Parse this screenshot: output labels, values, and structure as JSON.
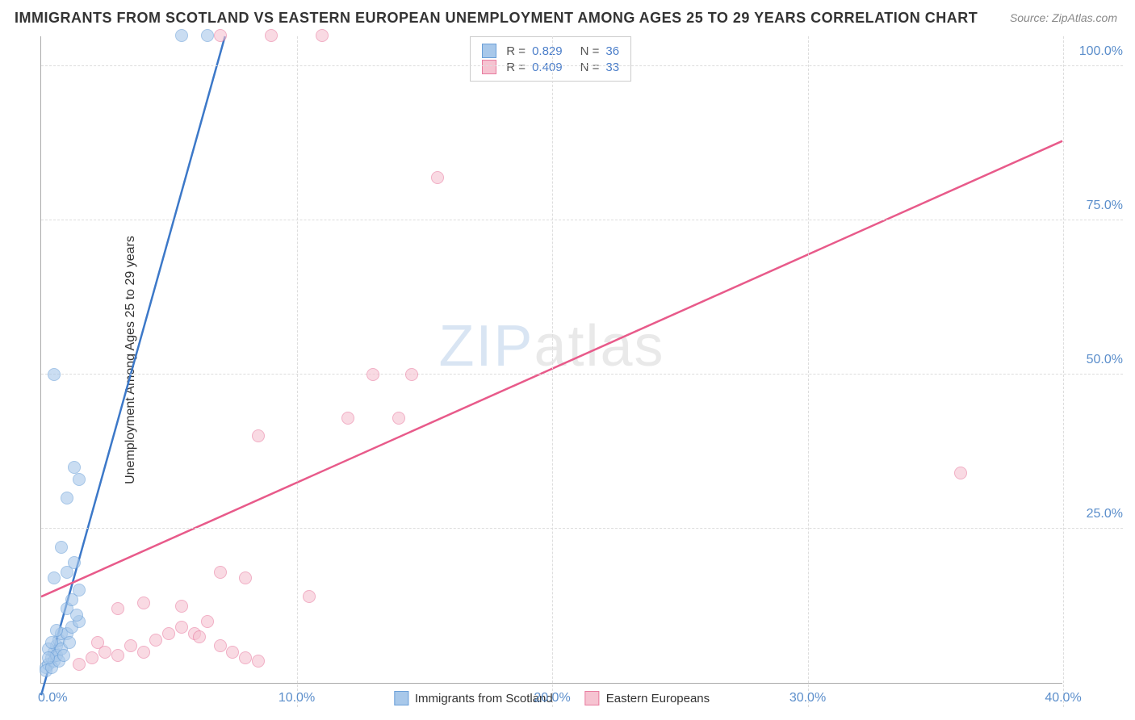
{
  "title": "IMMIGRANTS FROM SCOTLAND VS EASTERN EUROPEAN UNEMPLOYMENT AMONG AGES 25 TO 29 YEARS CORRELATION CHART",
  "source": "Source: ZipAtlas.com",
  "y_axis_label": "Unemployment Among Ages 25 to 29 years",
  "watermark": {
    "part1": "ZIP",
    "part2": "atlas"
  },
  "chart": {
    "type": "scatter-with-trend",
    "background_color": "#ffffff",
    "grid_color": "#dddddd",
    "axis_color": "#aaaaaa",
    "tick_label_color": "#5b8ecb",
    "xlim": [
      0,
      40
    ],
    "ylim": [
      0,
      105
    ],
    "xticks": [
      10,
      20,
      30,
      40
    ],
    "xtick_labels": [
      "10.0%",
      "20.0%",
      "30.0%",
      "40.0%"
    ],
    "yticks": [
      25,
      50,
      75,
      100
    ],
    "ytick_labels": [
      "25.0%",
      "50.0%",
      "75.0%",
      "100.0%"
    ],
    "origin_label": "0.0%",
    "marker_radius": 8,
    "marker_border_width": 1.2,
    "trend_line_width": 2.5,
    "series": [
      {
        "name": "Immigrants from Scotland",
        "fill_color": "#a8c8ea",
        "border_color": "#6a9fd8",
        "fill_opacity": 0.6,
        "R": "0.829",
        "N": "36",
        "trend": {
          "x1": 0,
          "y1": -2,
          "x2": 7.2,
          "y2": 105,
          "color": "#3c78c8"
        },
        "points": [
          [
            0.2,
            2.5
          ],
          [
            0.3,
            3.0
          ],
          [
            0.4,
            4.0
          ],
          [
            0.5,
            5.0
          ],
          [
            0.6,
            6.0
          ],
          [
            0.7,
            7.0
          ],
          [
            0.8,
            8.0
          ],
          [
            0.3,
            5.5
          ],
          [
            0.5,
            3.5
          ],
          [
            0.6,
            4.5
          ],
          [
            0.4,
            6.5
          ],
          [
            0.8,
            5.5
          ],
          [
            1.0,
            8.0
          ],
          [
            1.2,
            9.0
          ],
          [
            1.5,
            10.0
          ],
          [
            1.0,
            12.0
          ],
          [
            1.2,
            13.5
          ],
          [
            1.5,
            15.0
          ],
          [
            0.5,
            17.0
          ],
          [
            1.0,
            18.0
          ],
          [
            1.3,
            19.5
          ],
          [
            0.8,
            22.0
          ],
          [
            1.0,
            30.0
          ],
          [
            1.5,
            33.0
          ],
          [
            1.3,
            35.0
          ],
          [
            0.5,
            50.0
          ],
          [
            5.5,
            105.0
          ],
          [
            6.5,
            105.0
          ],
          [
            0.2,
            2.0
          ],
          [
            0.4,
            2.5
          ],
          [
            0.7,
            3.5
          ],
          [
            0.9,
            4.5
          ],
          [
            1.1,
            6.5
          ],
          [
            0.6,
            8.5
          ],
          [
            0.3,
            4.0
          ],
          [
            1.4,
            11.0
          ]
        ]
      },
      {
        "name": "Eastern Europeans",
        "fill_color": "#f6c3d1",
        "border_color": "#e87b9f",
        "fill_opacity": 0.6,
        "R": "0.409",
        "N": "33",
        "trend": {
          "x1": 0,
          "y1": 14,
          "x2": 40,
          "y2": 88,
          "color": "#e85a8a"
        },
        "points": [
          [
            1.5,
            3.0
          ],
          [
            2.0,
            4.0
          ],
          [
            2.5,
            5.0
          ],
          [
            3.0,
            4.5
          ],
          [
            3.5,
            6.0
          ],
          [
            4.0,
            5.0
          ],
          [
            4.5,
            7.0
          ],
          [
            5.0,
            8.0
          ],
          [
            5.5,
            9.0
          ],
          [
            6.0,
            8.0
          ],
          [
            6.5,
            10.0
          ],
          [
            7.0,
            6.0
          ],
          [
            7.5,
            5.0
          ],
          [
            8.0,
            4.0
          ],
          [
            8.5,
            3.5
          ],
          [
            3.0,
            12.0
          ],
          [
            4.0,
            13.0
          ],
          [
            5.5,
            12.5
          ],
          [
            8.0,
            17.0
          ],
          [
            7.0,
            18.0
          ],
          [
            8.5,
            40.0
          ],
          [
            10.5,
            14.0
          ],
          [
            12.0,
            43.0
          ],
          [
            13.0,
            50.0
          ],
          [
            14.0,
            43.0
          ],
          [
            14.5,
            50.0
          ],
          [
            15.5,
            82.0
          ],
          [
            7.0,
            105.0
          ],
          [
            9.0,
            105.0
          ],
          [
            11.0,
            105.0
          ],
          [
            36.0,
            34.0
          ],
          [
            2.2,
            6.5
          ],
          [
            6.2,
            7.5
          ]
        ]
      }
    ],
    "legend_top": {
      "r_prefix": "R  =",
      "n_prefix": "N  ="
    },
    "legend_bottom": {
      "label1": "Immigrants from Scotland",
      "label2": "Eastern Europeans"
    }
  }
}
